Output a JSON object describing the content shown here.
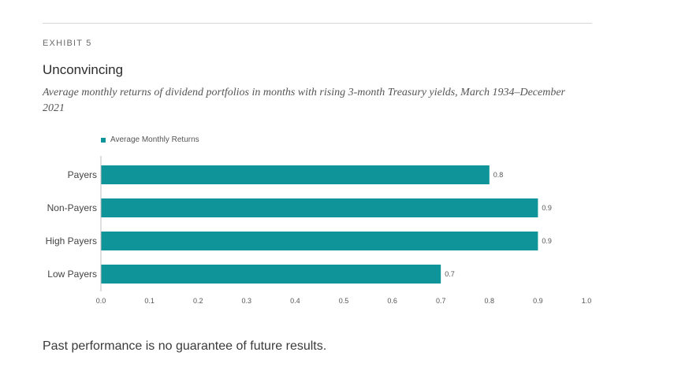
{
  "exhibit_label": "EXHIBIT 5",
  "chart_data": {
    "type": "bar",
    "orientation": "horizontal",
    "title": "Unconvincing",
    "subtitle": "Average monthly returns of dividend portfolios in months with rising 3-month Treasury yields, March 1934–December 2021",
    "categories": [
      "Payers",
      "Non-Payers",
      "High Payers",
      "Low Payers"
    ],
    "series": [
      {
        "name": "Average Monthly Returns",
        "values": [
          0.8,
          0.9,
          0.9,
          0.7
        ],
        "color": "#0f9499"
      }
    ],
    "value_labels": [
      "0.8",
      "0.9",
      "0.9",
      "0.7"
    ],
    "xlim": [
      0.0,
      1.0
    ],
    "xticks": [
      "0.0",
      "0.1",
      "0.2",
      "0.3",
      "0.4",
      "0.5",
      "0.6",
      "0.7",
      "0.8",
      "0.9",
      "1.0"
    ],
    "xlabel": "",
    "ylabel": "",
    "grid": false,
    "legend_position": "top-left"
  },
  "footer_note": "Past performance is no guarantee of future results."
}
